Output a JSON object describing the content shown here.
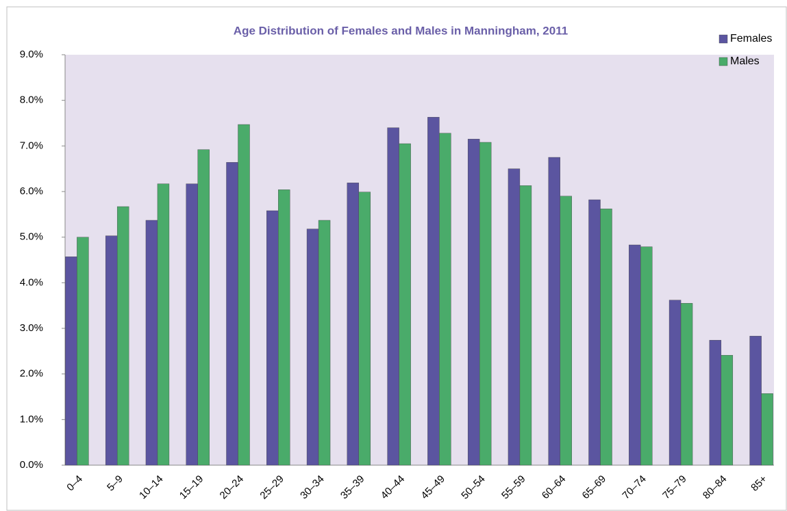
{
  "chart_data": {
    "type": "bar",
    "title": "Age Distribution  of Females and Males in Manningham,  2011",
    "categories": [
      "0–4",
      "5–9",
      "10–14",
      "15–19",
      "20–24",
      "25–29",
      "30–34",
      "35–39",
      "40–44",
      "45–49",
      "50–54",
      "55–59",
      "60–64",
      "65–69",
      "70–74",
      "75–79",
      "80–84",
      "85+"
    ],
    "series": [
      {
        "name": "Females",
        "color": "#5b55a0",
        "values": [
          4.57,
          5.03,
          5.37,
          6.17,
          6.64,
          5.58,
          5.18,
          6.19,
          7.4,
          7.63,
          7.15,
          6.5,
          6.75,
          5.82,
          4.83,
          3.62,
          2.74,
          2.83
        ]
      },
      {
        "name": "Males",
        "color": "#4aab6a",
        "values": [
          5.0,
          5.67,
          6.17,
          6.92,
          7.47,
          6.04,
          5.37,
          5.99,
          7.05,
          7.28,
          7.08,
          6.13,
          5.9,
          5.62,
          4.79,
          3.55,
          2.41,
          1.57
        ]
      }
    ],
    "ylim": [
      0,
      9
    ],
    "yticks": [
      {
        "value": 0,
        "label": "0.0%"
      },
      {
        "value": 1,
        "label": "1.0%"
      },
      {
        "value": 2,
        "label": "2.0%"
      },
      {
        "value": 3,
        "label": "3.0%"
      },
      {
        "value": 4,
        "label": "4.0%"
      },
      {
        "value": 5,
        "label": "5.0%"
      },
      {
        "value": 6,
        "label": "6.0%"
      },
      {
        "value": 7,
        "label": "7.0%"
      },
      {
        "value": 8,
        "label": "8.0%"
      },
      {
        "value": 9,
        "label": "9.0%"
      }
    ],
    "grid": false,
    "legend": "top-right"
  }
}
